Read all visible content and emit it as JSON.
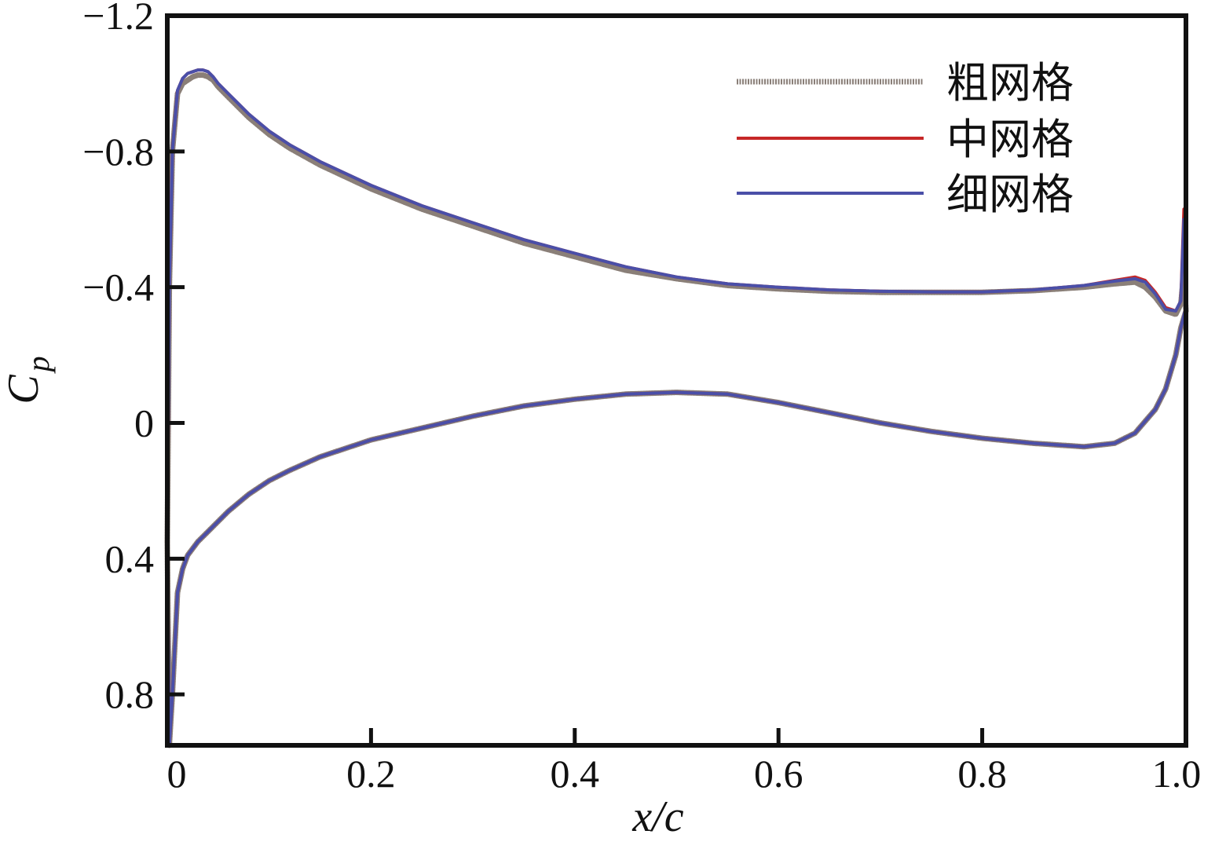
{
  "chart_data": {
    "type": "line",
    "xlabel": "x/c",
    "ylabel": {
      "main": "C",
      "sub": "p"
    },
    "xlim": [
      0,
      1.0
    ],
    "ylim": [
      0.95,
      -1.2
    ],
    "y_inverted": true,
    "x_ticks": [
      0,
      0.2,
      0.4,
      0.6,
      0.8,
      1.0
    ],
    "x_tick_labels": [
      "0",
      "0.2",
      "0.4",
      "0.6",
      "0.8",
      "1.0"
    ],
    "y_ticks": [
      -1.2,
      -0.8,
      -0.4,
      0,
      0.4,
      0.8
    ],
    "y_tick_labels": [
      "−1.2",
      "−0.8",
      "−0.4",
      "0",
      "0.4",
      "0.8"
    ],
    "grid": false,
    "legend_position": "top-right",
    "series": [
      {
        "name": "粗网格",
        "color": "#8a7f78",
        "upper": {
          "x": [
            0,
            0.002,
            0.005,
            0.01,
            0.015,
            0.02,
            0.025,
            0.03,
            0.035,
            0.04,
            0.045,
            0.05,
            0.06,
            0.07,
            0.08,
            0.1,
            0.12,
            0.15,
            0.2,
            0.25,
            0.3,
            0.35,
            0.4,
            0.45,
            0.5,
            0.55,
            0.6,
            0.65,
            0.7,
            0.75,
            0.8,
            0.85,
            0.9,
            0.93,
            0.95,
            0.96,
            0.97,
            0.98,
            0.99,
            0.995,
            0.998,
            1.0
          ],
          "y": [
            0.35,
            -0.4,
            -0.8,
            -0.97,
            -1.0,
            -1.01,
            -1.02,
            -1.025,
            -1.025,
            -1.02,
            -1.01,
            -0.99,
            -0.96,
            -0.93,
            -0.9,
            -0.85,
            -0.81,
            -0.76,
            -0.69,
            -0.63,
            -0.58,
            -0.53,
            -0.49,
            -0.45,
            -0.425,
            -0.405,
            -0.395,
            -0.388,
            -0.385,
            -0.385,
            -0.385,
            -0.39,
            -0.4,
            -0.41,
            -0.415,
            -0.4,
            -0.37,
            -0.33,
            -0.32,
            -0.35,
            -0.45,
            -0.33
          ]
        },
        "lower": {
          "x": [
            0,
            0.002,
            0.005,
            0.01,
            0.015,
            0.02,
            0.03,
            0.04,
            0.05,
            0.06,
            0.08,
            0.1,
            0.12,
            0.15,
            0.2,
            0.25,
            0.3,
            0.35,
            0.4,
            0.45,
            0.5,
            0.55,
            0.6,
            0.65,
            0.7,
            0.75,
            0.8,
            0.85,
            0.9,
            0.93,
            0.95,
            0.97,
            0.98,
            0.99,
            0.995,
            1.0
          ],
          "y": [
            0.35,
            0.95,
            0.8,
            0.5,
            0.43,
            0.39,
            0.35,
            0.32,
            0.29,
            0.26,
            0.21,
            0.17,
            0.14,
            0.1,
            0.05,
            0.015,
            -0.02,
            -0.05,
            -0.07,
            -0.085,
            -0.09,
            -0.085,
            -0.06,
            -0.03,
            0.0,
            0.025,
            0.045,
            0.06,
            0.07,
            0.06,
            0.03,
            -0.04,
            -0.1,
            -0.2,
            -0.28,
            -0.33
          ]
        }
      },
      {
        "name": "中网格",
        "color": "#c62828",
        "upper": {
          "x": [
            0,
            0.002,
            0.005,
            0.01,
            0.015,
            0.02,
            0.025,
            0.03,
            0.035,
            0.04,
            0.045,
            0.05,
            0.06,
            0.07,
            0.08,
            0.1,
            0.12,
            0.15,
            0.2,
            0.25,
            0.3,
            0.35,
            0.4,
            0.45,
            0.5,
            0.55,
            0.6,
            0.65,
            0.7,
            0.75,
            0.8,
            0.85,
            0.9,
            0.93,
            0.95,
            0.96,
            0.97,
            0.98,
            0.99,
            0.995,
            0.998,
            1.0
          ],
          "y": [
            0.35,
            -0.4,
            -0.8,
            -0.98,
            -1.015,
            -1.03,
            -1.035,
            -1.04,
            -1.04,
            -1.035,
            -1.02,
            -1.0,
            -0.97,
            -0.94,
            -0.91,
            -0.86,
            -0.82,
            -0.77,
            -0.7,
            -0.64,
            -0.59,
            -0.54,
            -0.5,
            -0.46,
            -0.43,
            -0.41,
            -0.4,
            -0.392,
            -0.388,
            -0.386,
            -0.386,
            -0.392,
            -0.405,
            -0.42,
            -0.43,
            -0.42,
            -0.385,
            -0.34,
            -0.33,
            -0.36,
            -0.63,
            -0.34
          ]
        },
        "lower": {
          "x": [
            0,
            0.002,
            0.005,
            0.01,
            0.015,
            0.02,
            0.03,
            0.04,
            0.05,
            0.06,
            0.08,
            0.1,
            0.12,
            0.15,
            0.2,
            0.25,
            0.3,
            0.35,
            0.4,
            0.45,
            0.5,
            0.55,
            0.6,
            0.65,
            0.7,
            0.75,
            0.8,
            0.85,
            0.9,
            0.93,
            0.95,
            0.97,
            0.98,
            0.99,
            0.995,
            1.0
          ],
          "y": [
            0.35,
            0.95,
            0.8,
            0.5,
            0.43,
            0.39,
            0.35,
            0.32,
            0.29,
            0.26,
            0.21,
            0.17,
            0.14,
            0.1,
            0.05,
            0.015,
            -0.02,
            -0.05,
            -0.07,
            -0.085,
            -0.09,
            -0.085,
            -0.06,
            -0.03,
            0.0,
            0.025,
            0.045,
            0.06,
            0.07,
            0.06,
            0.03,
            -0.04,
            -0.1,
            -0.2,
            -0.28,
            -0.34
          ]
        }
      },
      {
        "name": "细网格",
        "color": "#4a4fa8",
        "upper": {
          "x": [
            0,
            0.002,
            0.005,
            0.01,
            0.015,
            0.02,
            0.025,
            0.03,
            0.035,
            0.04,
            0.045,
            0.05,
            0.06,
            0.07,
            0.08,
            0.1,
            0.12,
            0.15,
            0.2,
            0.25,
            0.3,
            0.35,
            0.4,
            0.45,
            0.5,
            0.55,
            0.6,
            0.65,
            0.7,
            0.75,
            0.8,
            0.85,
            0.9,
            0.93,
            0.95,
            0.96,
            0.97,
            0.98,
            0.99,
            0.995,
            0.998,
            1.0
          ],
          "y": [
            0.35,
            -0.4,
            -0.8,
            -0.98,
            -1.015,
            -1.03,
            -1.035,
            -1.04,
            -1.04,
            -1.035,
            -1.02,
            -1.0,
            -0.97,
            -0.94,
            -0.91,
            -0.86,
            -0.82,
            -0.77,
            -0.7,
            -0.64,
            -0.59,
            -0.54,
            -0.5,
            -0.46,
            -0.43,
            -0.41,
            -0.4,
            -0.392,
            -0.388,
            -0.386,
            -0.386,
            -0.392,
            -0.405,
            -0.418,
            -0.425,
            -0.415,
            -0.38,
            -0.335,
            -0.33,
            -0.36,
            -0.6,
            -0.34
          ]
        },
        "lower": {
          "x": [
            0,
            0.002,
            0.005,
            0.01,
            0.015,
            0.02,
            0.03,
            0.04,
            0.05,
            0.06,
            0.08,
            0.1,
            0.12,
            0.15,
            0.2,
            0.25,
            0.3,
            0.35,
            0.4,
            0.45,
            0.5,
            0.55,
            0.6,
            0.65,
            0.7,
            0.75,
            0.8,
            0.85,
            0.9,
            0.93,
            0.95,
            0.97,
            0.98,
            0.99,
            0.995,
            1.0
          ],
          "y": [
            0.35,
            0.95,
            0.8,
            0.5,
            0.43,
            0.39,
            0.35,
            0.32,
            0.29,
            0.26,
            0.21,
            0.17,
            0.14,
            0.1,
            0.05,
            0.015,
            -0.02,
            -0.05,
            -0.07,
            -0.085,
            -0.09,
            -0.085,
            -0.06,
            -0.03,
            0.0,
            0.025,
            0.045,
            0.06,
            0.07,
            0.06,
            0.03,
            -0.04,
            -0.1,
            -0.2,
            -0.28,
            -0.34
          ]
        }
      }
    ]
  }
}
